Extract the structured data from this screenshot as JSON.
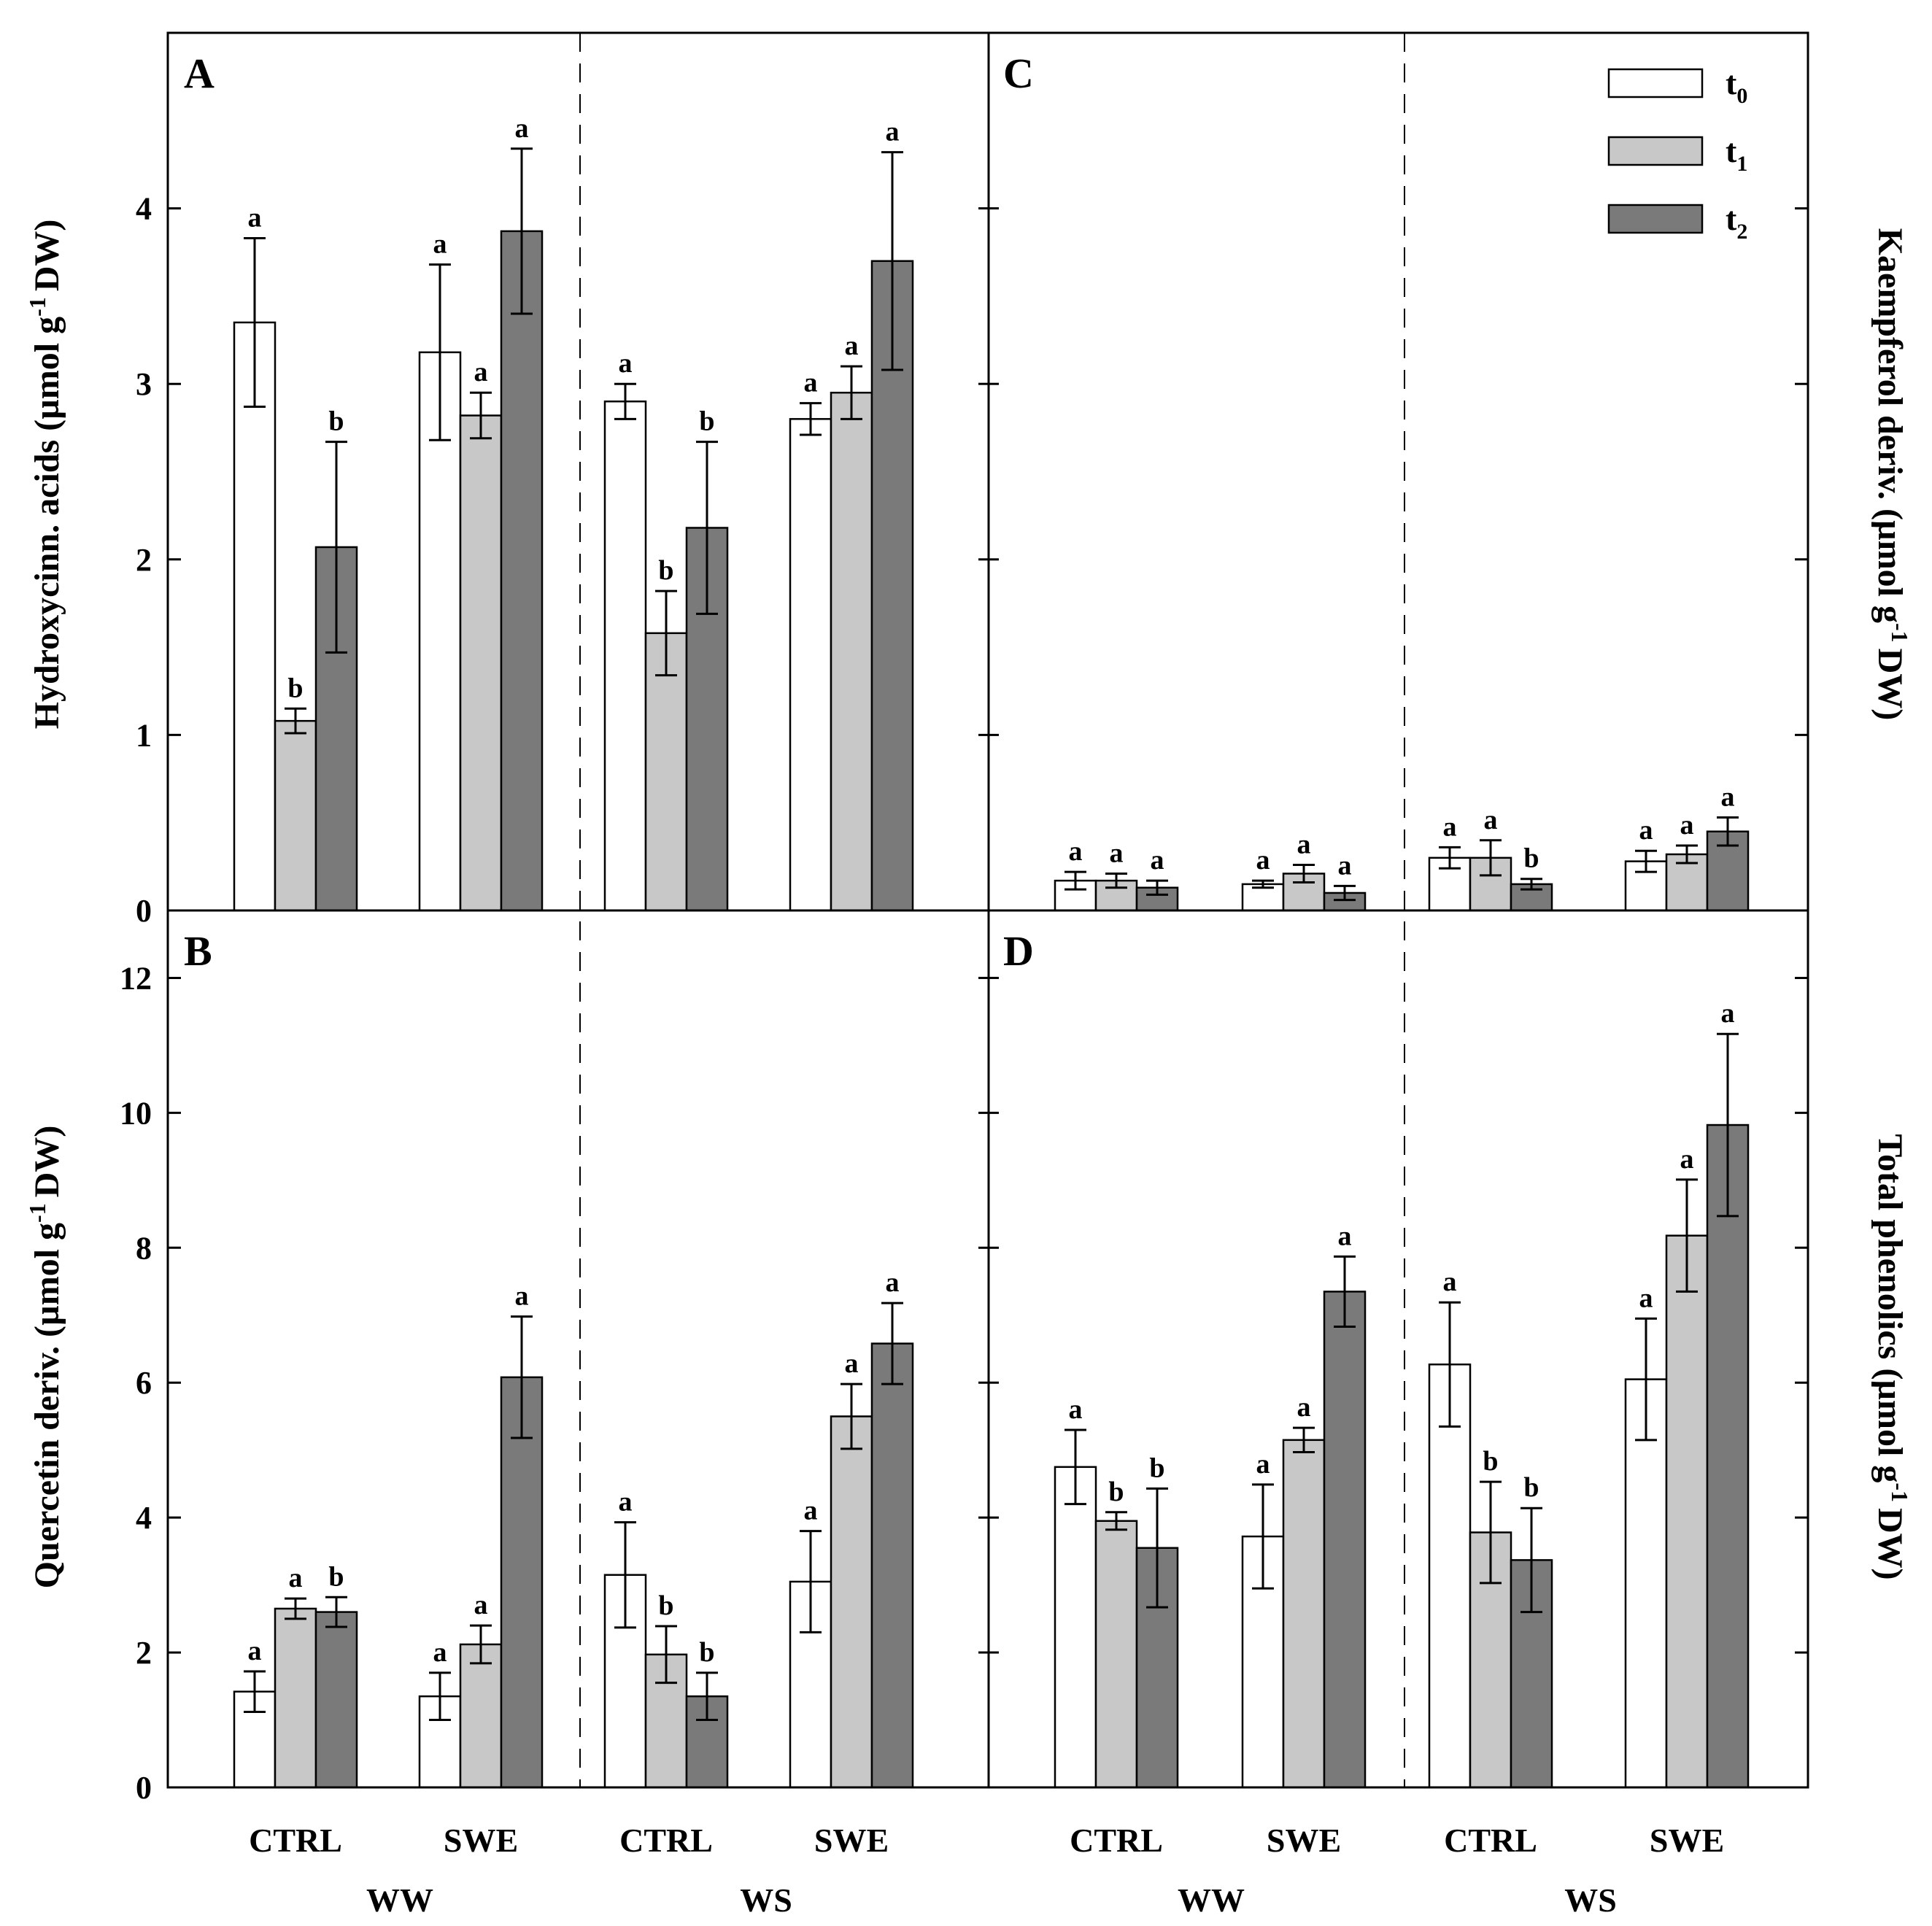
{
  "colors": {
    "t0": "#ffffff",
    "t1": "#c8c8c8",
    "t2": "#7a7a7a",
    "stroke": "#000000"
  },
  "legend": [
    {
      "key": "t0",
      "main": "t",
      "sub": "0"
    },
    {
      "key": "t1",
      "main": "t",
      "sub": "1"
    },
    {
      "key": "t2",
      "main": "t",
      "sub": "2"
    }
  ],
  "shared": {
    "categories": [
      "CTRL",
      "SWE",
      "CTRL",
      "SWE"
    ],
    "groups": [
      "WW",
      "WS"
    ]
  },
  "chart_data": [
    {
      "panel": "A",
      "type": "bar",
      "ylabel": "Hydroxycinn. acids (µmol g-1 DW)",
      "ylabel_parts": [
        "Hydroxycinn. acids (µmol g",
        "-1",
        "DW)"
      ],
      "ylim": [
        0,
        5
      ],
      "yticks": [
        "0",
        "1",
        "2",
        "3",
        "4"
      ],
      "categories": [
        "WW CTRL",
        "WW SWE",
        "WS CTRL",
        "WS SWE"
      ],
      "series": [
        {
          "name": "t0",
          "values": [
            3.35,
            3.18,
            2.9,
            2.8
          ],
          "errors": [
            0.48,
            0.5,
            0.1,
            0.09
          ],
          "letters": [
            "a",
            "a",
            "a",
            "a"
          ]
        },
        {
          "name": "t1",
          "values": [
            1.08,
            2.82,
            1.58,
            2.95
          ],
          "errors": [
            0.07,
            0.13,
            0.24,
            0.15
          ],
          "letters": [
            "b",
            "a",
            "b",
            "a"
          ]
        },
        {
          "name": "t2",
          "values": [
            2.07,
            3.87,
            2.18,
            3.7
          ],
          "errors": [
            0.6,
            0.47,
            0.49,
            0.62
          ],
          "letters": [
            "b",
            "a",
            "b",
            "a"
          ]
        }
      ]
    },
    {
      "panel": "B",
      "type": "bar",
      "ylabel": "Quercetin deriv. (µmol g-1 DW)",
      "ylabel_parts": [
        "Quercetin deriv. (µmol g",
        "-1",
        "DW)"
      ],
      "ylim": [
        0,
        13
      ],
      "yticks": [
        "0",
        "2",
        "4",
        "6",
        "8",
        "10",
        "12"
      ],
      "categories": [
        "WW CTRL",
        "WW SWE",
        "WS CTRL",
        "WS SWE"
      ],
      "series": [
        {
          "name": "t0",
          "values": [
            1.42,
            1.35,
            3.15,
            3.05
          ],
          "errors": [
            0.3,
            0.35,
            0.78,
            0.75
          ],
          "letters": [
            "a",
            "a",
            "a",
            "a"
          ]
        },
        {
          "name": "t1",
          "values": [
            2.65,
            2.12,
            1.97,
            5.5
          ],
          "errors": [
            0.15,
            0.28,
            0.42,
            0.48
          ],
          "letters": [
            "a",
            "a",
            "b",
            "a"
          ]
        },
        {
          "name": "t2",
          "values": [
            2.6,
            6.08,
            1.35,
            6.58
          ],
          "errors": [
            0.22,
            0.9,
            0.35,
            0.6
          ],
          "letters": [
            "b",
            "a",
            "b",
            "a"
          ]
        }
      ]
    },
    {
      "panel": "C",
      "type": "bar",
      "ylabel": "Kaempferol deriv. (µmol g-1 DW)",
      "ylabel_parts": [
        "Kaempferol deriv. (µmol g",
        "-1",
        "DW)"
      ],
      "ylim": [
        0,
        5
      ],
      "categories": [
        "WW CTRL",
        "WW SWE",
        "WS CTRL",
        "WS SWE"
      ],
      "series": [
        {
          "name": "t0",
          "values": [
            0.17,
            0.15,
            0.3,
            0.28
          ],
          "errors": [
            0.05,
            0.02,
            0.06,
            0.06
          ],
          "letters": [
            "a",
            "a",
            "a",
            "a"
          ]
        },
        {
          "name": "t1",
          "values": [
            0.17,
            0.21,
            0.3,
            0.32
          ],
          "errors": [
            0.04,
            0.05,
            0.1,
            0.05
          ],
          "letters": [
            "a",
            "a",
            "a",
            "a"
          ]
        },
        {
          "name": "t2",
          "values": [
            0.13,
            0.1,
            0.15,
            0.45
          ],
          "errors": [
            0.04,
            0.04,
            0.03,
            0.08
          ],
          "letters": [
            "a",
            "a",
            "b",
            "a"
          ]
        }
      ]
    },
    {
      "panel": "D",
      "type": "bar",
      "ylabel": "Total phenolics (µmol g-1 DW)",
      "ylabel_parts": [
        "Total phenolics (µmol g",
        "-1",
        "DW)"
      ],
      "ylim": [
        0,
        13
      ],
      "categories": [
        "WW CTRL",
        "WW SWE",
        "WS CTRL",
        "WS SWE"
      ],
      "series": [
        {
          "name": "t0",
          "values": [
            4.75,
            3.72,
            6.27,
            6.05
          ],
          "errors": [
            0.55,
            0.77,
            0.92,
            0.9
          ],
          "letters": [
            "a",
            "a",
            "a",
            "a"
          ]
        },
        {
          "name": "t1",
          "values": [
            3.95,
            5.15,
            3.78,
            8.18
          ],
          "errors": [
            0.13,
            0.18,
            0.75,
            0.83
          ],
          "letters": [
            "b",
            "a",
            "b",
            "a"
          ]
        },
        {
          "name": "t2",
          "values": [
            3.55,
            7.35,
            3.37,
            9.82
          ],
          "errors": [
            0.88,
            0.52,
            0.77,
            1.35
          ],
          "letters": [
            "b",
            "a",
            "b",
            "a"
          ]
        }
      ]
    }
  ]
}
